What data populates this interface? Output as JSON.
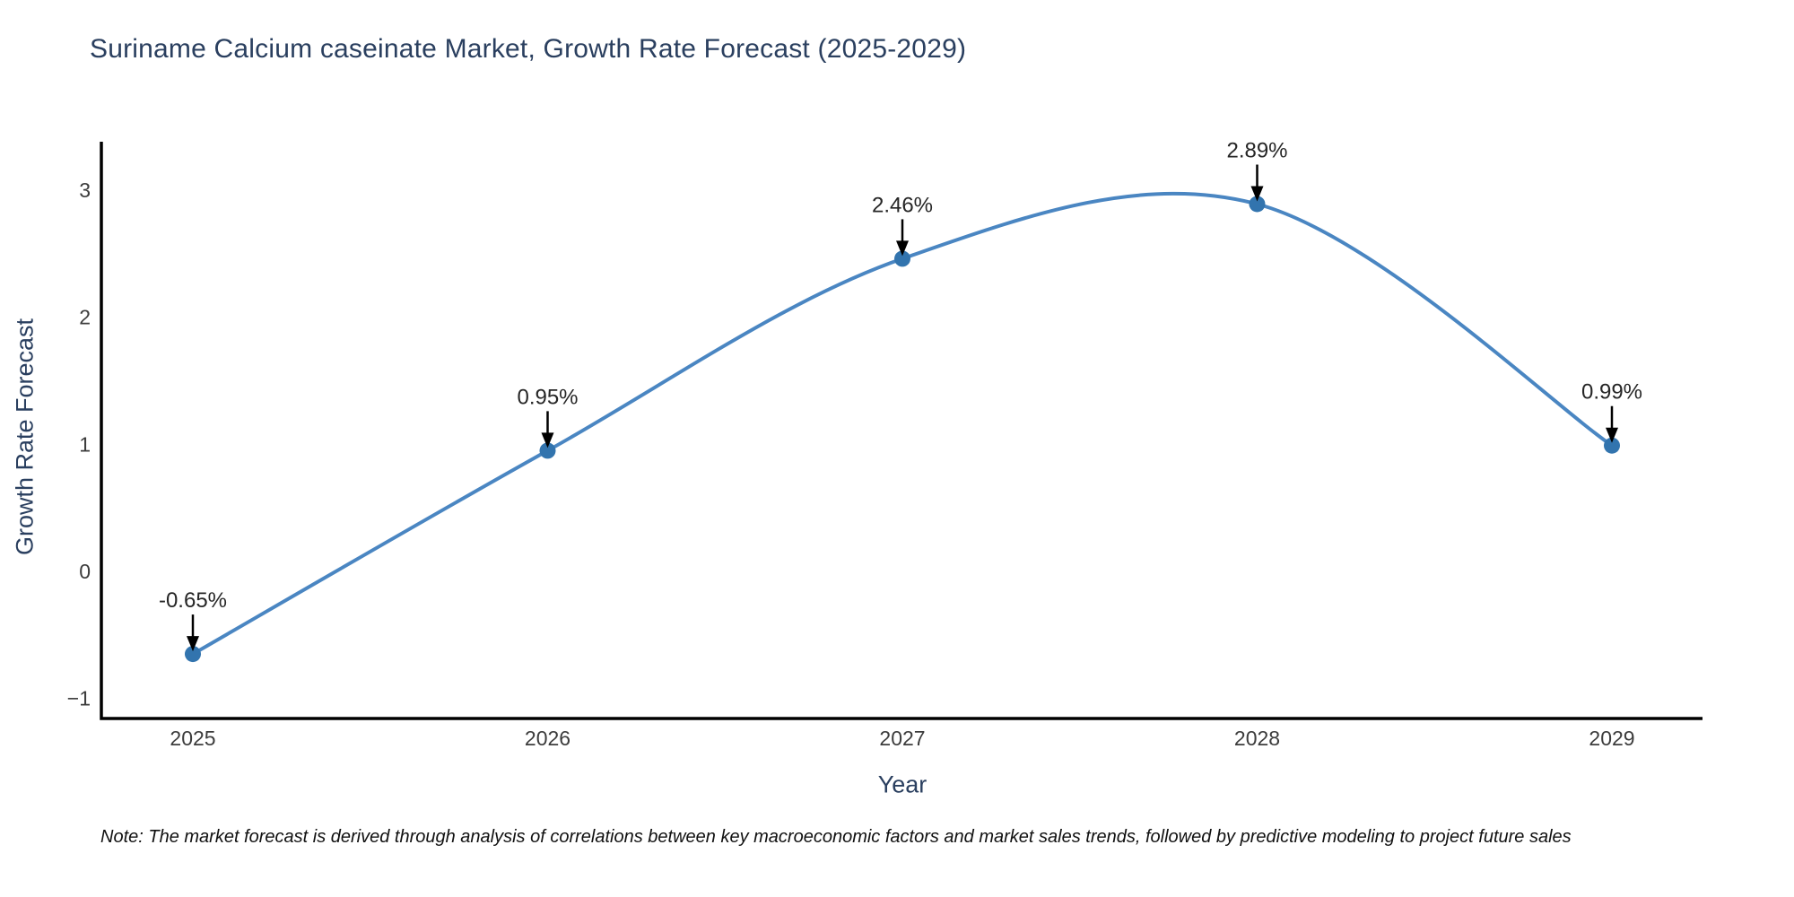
{
  "title": "Suriname Calcium caseinate Market, Growth Rate Forecast (2025-2029)",
  "note": "Note: The market forecast is derived through analysis of correlations between key macroeconomic factors and market sales trends, followed by predictive modeling to project future sales",
  "chart_data": {
    "type": "line",
    "title": "Suriname Calcium caseinate Market, Growth Rate Forecast (2025-2029)",
    "xlabel": "Year",
    "ylabel": "Growth Rate Forecast",
    "x": [
      2025,
      2026,
      2027,
      2028,
      2029
    ],
    "xtick_labels": [
      "2025",
      "2026",
      "2027",
      "2028",
      "2029"
    ],
    "values": [
      -0.65,
      0.95,
      2.46,
      2.89,
      0.99
    ],
    "point_labels": [
      "-0.65%",
      "0.95%",
      "2.46%",
      "2.89%",
      "0.99%"
    ],
    "yticks": [
      -1,
      0,
      1,
      2,
      3
    ],
    "ytick_labels": [
      "−1",
      "0",
      "1",
      "2",
      "3"
    ],
    "ylim": [
      -1.16,
      3.38
    ],
    "xlim": [
      2024.74,
      2029.26
    ],
    "grid": false,
    "legend": false,
    "curve": "smooth-spline",
    "annotation_style": "value-label-with-down-arrow",
    "colors": {
      "line": "#4a86c2",
      "marker": "#3274ae",
      "spine": "#000000",
      "arrow": "#000000",
      "tick_label": "#3c3c3c",
      "point_label": "#262626",
      "title": "#2a3f5f",
      "axis_title": "#2a3f5f",
      "background": "#ffffff"
    }
  }
}
